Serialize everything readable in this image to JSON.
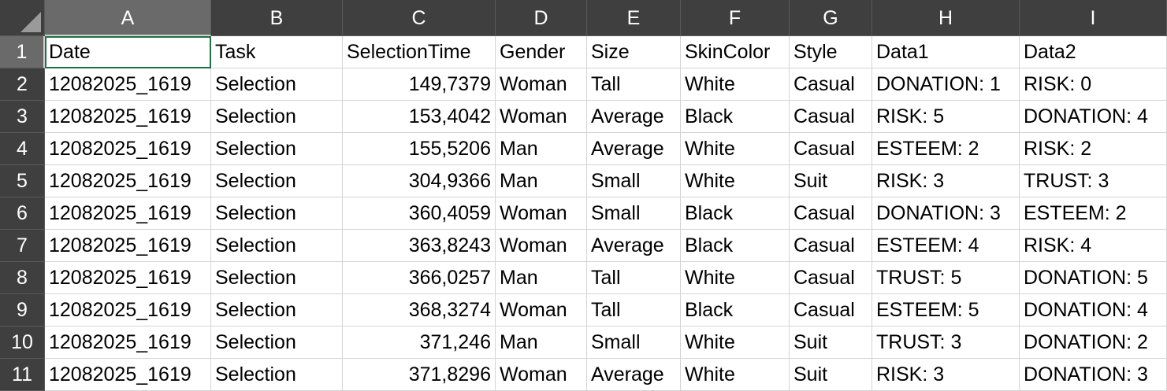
{
  "columns": [
    "A",
    "B",
    "C",
    "D",
    "E",
    "F",
    "G",
    "H",
    "I"
  ],
  "rows": [
    {
      "num": "1",
      "cells": [
        "Date",
        "Task",
        "SelectionTime",
        "Gender",
        "Size",
        "SkinColor",
        "Style",
        "Data1",
        "Data2"
      ]
    },
    {
      "num": "2",
      "cells": [
        "12082025_1619",
        "Selection",
        "149,7379",
        "Woman",
        "Tall",
        "White",
        "Casual",
        "DONATION: 1",
        "RISK: 0"
      ]
    },
    {
      "num": "3",
      "cells": [
        "12082025_1619",
        "Selection",
        "153,4042",
        "Woman",
        "Average",
        "Black",
        "Casual",
        "RISK: 5",
        "DONATION: 4"
      ]
    },
    {
      "num": "4",
      "cells": [
        "12082025_1619",
        "Selection",
        "155,5206",
        "Man",
        "Average",
        "White",
        "Casual",
        "ESTEEM: 2",
        "RISK: 2"
      ]
    },
    {
      "num": "5",
      "cells": [
        "12082025_1619",
        "Selection",
        "304,9366",
        "Man",
        "Small",
        "White",
        "Suit",
        "RISK: 3",
        "TRUST: 3"
      ]
    },
    {
      "num": "6",
      "cells": [
        "12082025_1619",
        "Selection",
        "360,4059",
        "Woman",
        "Small",
        "Black",
        "Casual",
        "DONATION: 3",
        "ESTEEM: 2"
      ]
    },
    {
      "num": "7",
      "cells": [
        "12082025_1619",
        "Selection",
        "363,8243",
        "Woman",
        "Average",
        "Black",
        "Casual",
        "ESTEEM: 4",
        "RISK: 4"
      ]
    },
    {
      "num": "8",
      "cells": [
        "12082025_1619",
        "Selection",
        "366,0257",
        "Man",
        "Tall",
        "White",
        "Casual",
        "TRUST: 5",
        "DONATION: 5"
      ]
    },
    {
      "num": "9",
      "cells": [
        "12082025_1619",
        "Selection",
        "368,3274",
        "Woman",
        "Tall",
        "Black",
        "Casual",
        "ESTEEM: 5",
        "DONATION: 4"
      ]
    },
    {
      "num": "10",
      "cells": [
        "12082025_1619",
        "Selection",
        "371,246",
        "Man",
        "Small",
        "White",
        "Suit",
        "TRUST: 3",
        "DONATION: 2"
      ]
    },
    {
      "num": "11",
      "cells": [
        "12082025_1619",
        "Selection",
        "371,8296",
        "Woman",
        "Average",
        "White",
        "Suit",
        "RISK: 3",
        "DONATION: 3"
      ]
    }
  ],
  "active_cell": "A1",
  "colors": {
    "header_bg": "#3f3f3f",
    "header_selected_bg": "#6a6a6a",
    "header_text": "#ffffff",
    "active_border": "#1e7145",
    "gridline": "#d4d4d4"
  }
}
